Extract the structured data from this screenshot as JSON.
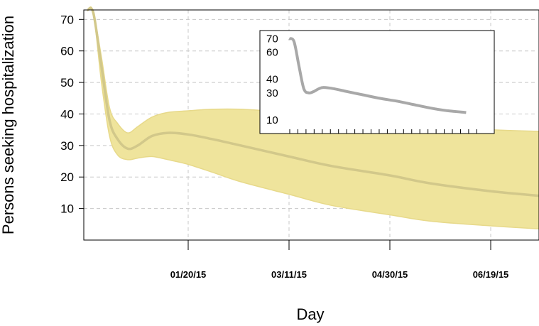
{
  "chart_data": [
    {
      "type": "line",
      "xlabel": "Day",
      "ylabel": "Persons seeking hospitalization",
      "x_tick_labels": [
        "01/20/15",
        "03/11/15",
        "04/30/15",
        "06/19/15"
      ],
      "y_ticks": [
        10,
        20,
        30,
        40,
        50,
        60,
        70
      ],
      "ylim": [
        0,
        73
      ],
      "grid": true,
      "colors": {
        "band": "#efe49c",
        "band_edge": "#e7d98a",
        "mean_line": "#d2c88a",
        "grid": "#c8c8c8"
      },
      "series": [
        {
          "x": [
            "12/01/14",
            "12/04/14",
            "12/08/14",
            "12/12/14",
            "12/16/14",
            "12/21/14",
            "12/26/14",
            "01/02/15",
            "01/10/15",
            "01/20/15",
            "02/01/15",
            "02/15/15",
            "03/11/15",
            "04/01/15",
            "04/30/15",
            "05/20/15",
            "06/19/15",
            "07/14/15"
          ],
          "values": [
            73,
            72,
            55,
            38,
            32,
            29,
            30,
            33,
            34,
            33.5,
            32,
            30,
            26.5,
            23.5,
            20.5,
            18,
            15.5,
            14
          ],
          "lower": [
            73,
            72,
            50,
            33,
            27,
            25.5,
            26,
            26.5,
            25.5,
            24,
            21.5,
            18.5,
            14.5,
            11,
            8,
            6,
            4.5,
            3.5
          ],
          "upper": [
            73,
            72,
            58,
            42,
            37,
            34,
            36,
            39,
            40.5,
            41,
            41.5,
            41.5,
            40.5,
            39.5,
            38,
            36.5,
            35,
            34.5
          ]
        }
      ]
    },
    {
      "type": "line",
      "inset": true,
      "y_ticks": [
        10,
        30,
        40,
        60,
        70
      ],
      "ylim": [
        0,
        76
      ],
      "x_tick_count": 24,
      "line_color": "#a8a8a8",
      "series": [
        {
          "x": [
            0,
            0.6,
            1.2,
            1.8,
            2.4,
            3.0,
            3.6,
            4.2,
            5.5,
            7,
            9,
            11,
            13,
            15,
            17,
            19,
            21.5
          ],
          "values": [
            70,
            68,
            50,
            33,
            30,
            31,
            33,
            34,
            33,
            31,
            28.5,
            26,
            24,
            21.5,
            19,
            17,
            15.5
          ]
        }
      ]
    }
  ]
}
